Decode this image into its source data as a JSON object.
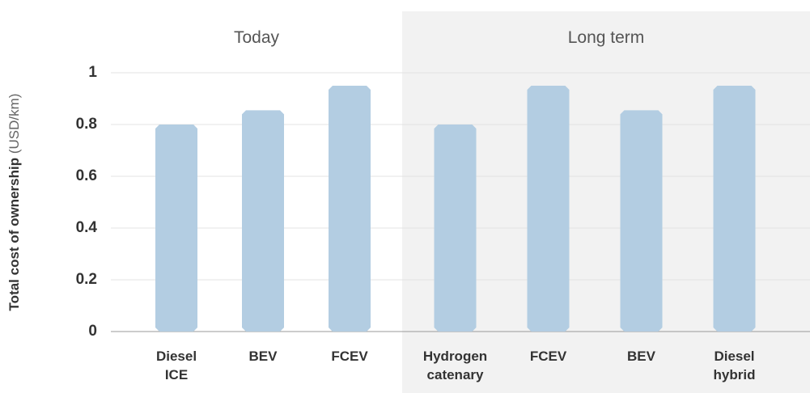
{
  "chart_data": {
    "type": "bar",
    "ylabel": "Total cost of ownership",
    "ylabel_unit": "(USD/km)",
    "groups": [
      {
        "name": "Today",
        "categories": [
          "Diesel ICE",
          "BEV",
          "FCEV"
        ],
        "values": [
          0.8,
          0.855,
          0.95
        ]
      },
      {
        "name": "Long term",
        "categories": [
          "Hydrogen catenary",
          "FCEV",
          "BEV",
          "Diesel hybrid"
        ],
        "values": [
          0.8,
          0.95,
          0.855,
          0.95
        ],
        "background": "#f2f2f2"
      }
    ],
    "color": "#b3cde2",
    "ylim": [
      0,
      1
    ],
    "yticks": [
      0,
      0.2,
      0.4,
      0.6,
      0.8,
      1
    ],
    "grid": true
  }
}
